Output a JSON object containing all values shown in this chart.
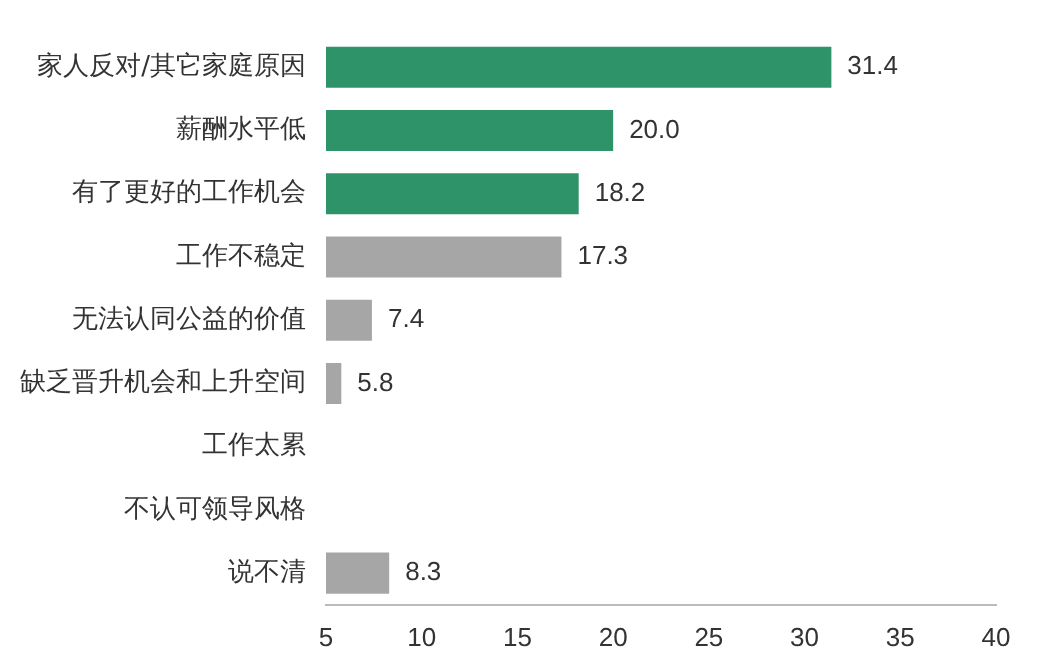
{
  "chart_data": {
    "type": "bar",
    "orientation": "horizontal",
    "categories": [
      "家人反对/其它家庭原因",
      "薪酬水平低",
      "有了更好的工作机会",
      "工作不稳定",
      "无法认同公益的价值",
      "缺乏晋升机会和上升空间",
      "工作太累",
      "不认可领导风格",
      "说不清"
    ],
    "values": [
      31.4,
      20.0,
      18.2,
      17.3,
      7.4,
      5.8,
      null,
      null,
      8.3
    ],
    "colors": [
      "#2e9368",
      "#2e9368",
      "#2e9368",
      "#a6a6a6",
      "#a6a6a6",
      "#a6a6a6",
      "#a6a6a6",
      "#a6a6a6",
      "#a6a6a6"
    ],
    "value_labels": [
      "31.4",
      "20.0",
      "18.2",
      "17.3",
      "7.4",
      "5.8",
      null,
      null,
      "8.3"
    ],
    "xlim": [
      5,
      40
    ],
    "xticks": [
      5,
      10,
      15,
      20,
      25,
      30,
      35,
      40
    ],
    "grid": false,
    "legend": false
  }
}
